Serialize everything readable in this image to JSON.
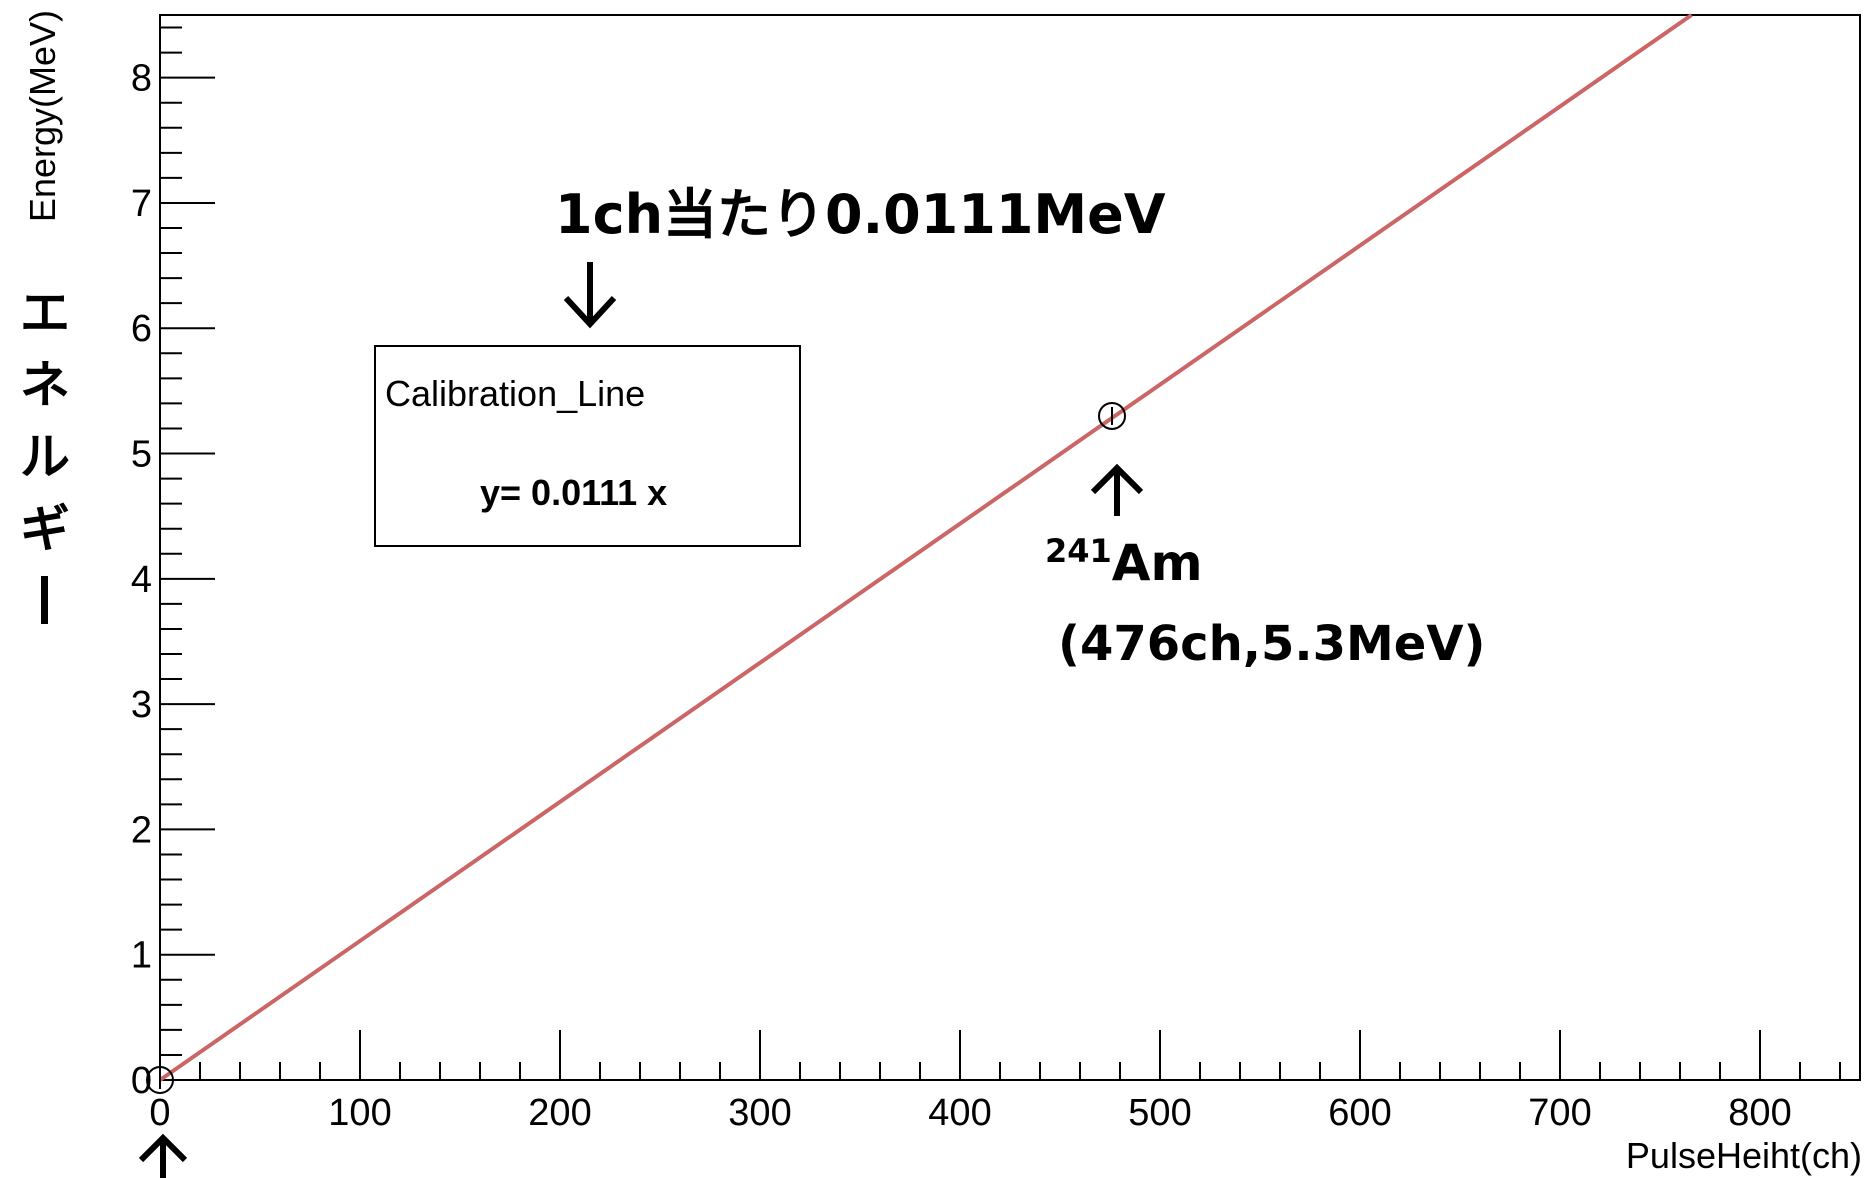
{
  "chart_data": {
    "type": "line",
    "xlabel": "PulseHeiht(ch)",
    "ylabel": "Energy(MeV)",
    "ylabel_jp": "エネルギー",
    "xlim": [
      0,
      850
    ],
    "ylim": [
      0,
      8.5
    ],
    "x_ticks": [
      0,
      100,
      200,
      300,
      400,
      500,
      600,
      700,
      800
    ],
    "y_ticks": [
      0,
      1,
      2,
      3,
      4,
      5,
      6,
      7,
      8
    ],
    "x_tick_labels": [
      "0",
      "100",
      "200",
      "300",
      "400",
      "500",
      "600",
      "700",
      "800"
    ],
    "y_tick_labels": [
      "0",
      "1",
      "2",
      "3",
      "4",
      "5",
      "6",
      "7",
      "8"
    ],
    "fit_line": {
      "slope": 0.0111,
      "intercept": 0,
      "color": "#cc6666"
    },
    "points": [
      {
        "x": 0,
        "y": 0
      },
      {
        "x": 476,
        "y": 5.3
      }
    ],
    "legend": {
      "title": "Calibration_Line",
      "equation": "y= 0.0111 x"
    },
    "annotations": {
      "per_channel": "1ch当たり0.0111MeV",
      "am_superscript": "241",
      "am_label": "Am",
      "am_coords": "(476ch,5.3MeV)"
    },
    "grid": false
  }
}
